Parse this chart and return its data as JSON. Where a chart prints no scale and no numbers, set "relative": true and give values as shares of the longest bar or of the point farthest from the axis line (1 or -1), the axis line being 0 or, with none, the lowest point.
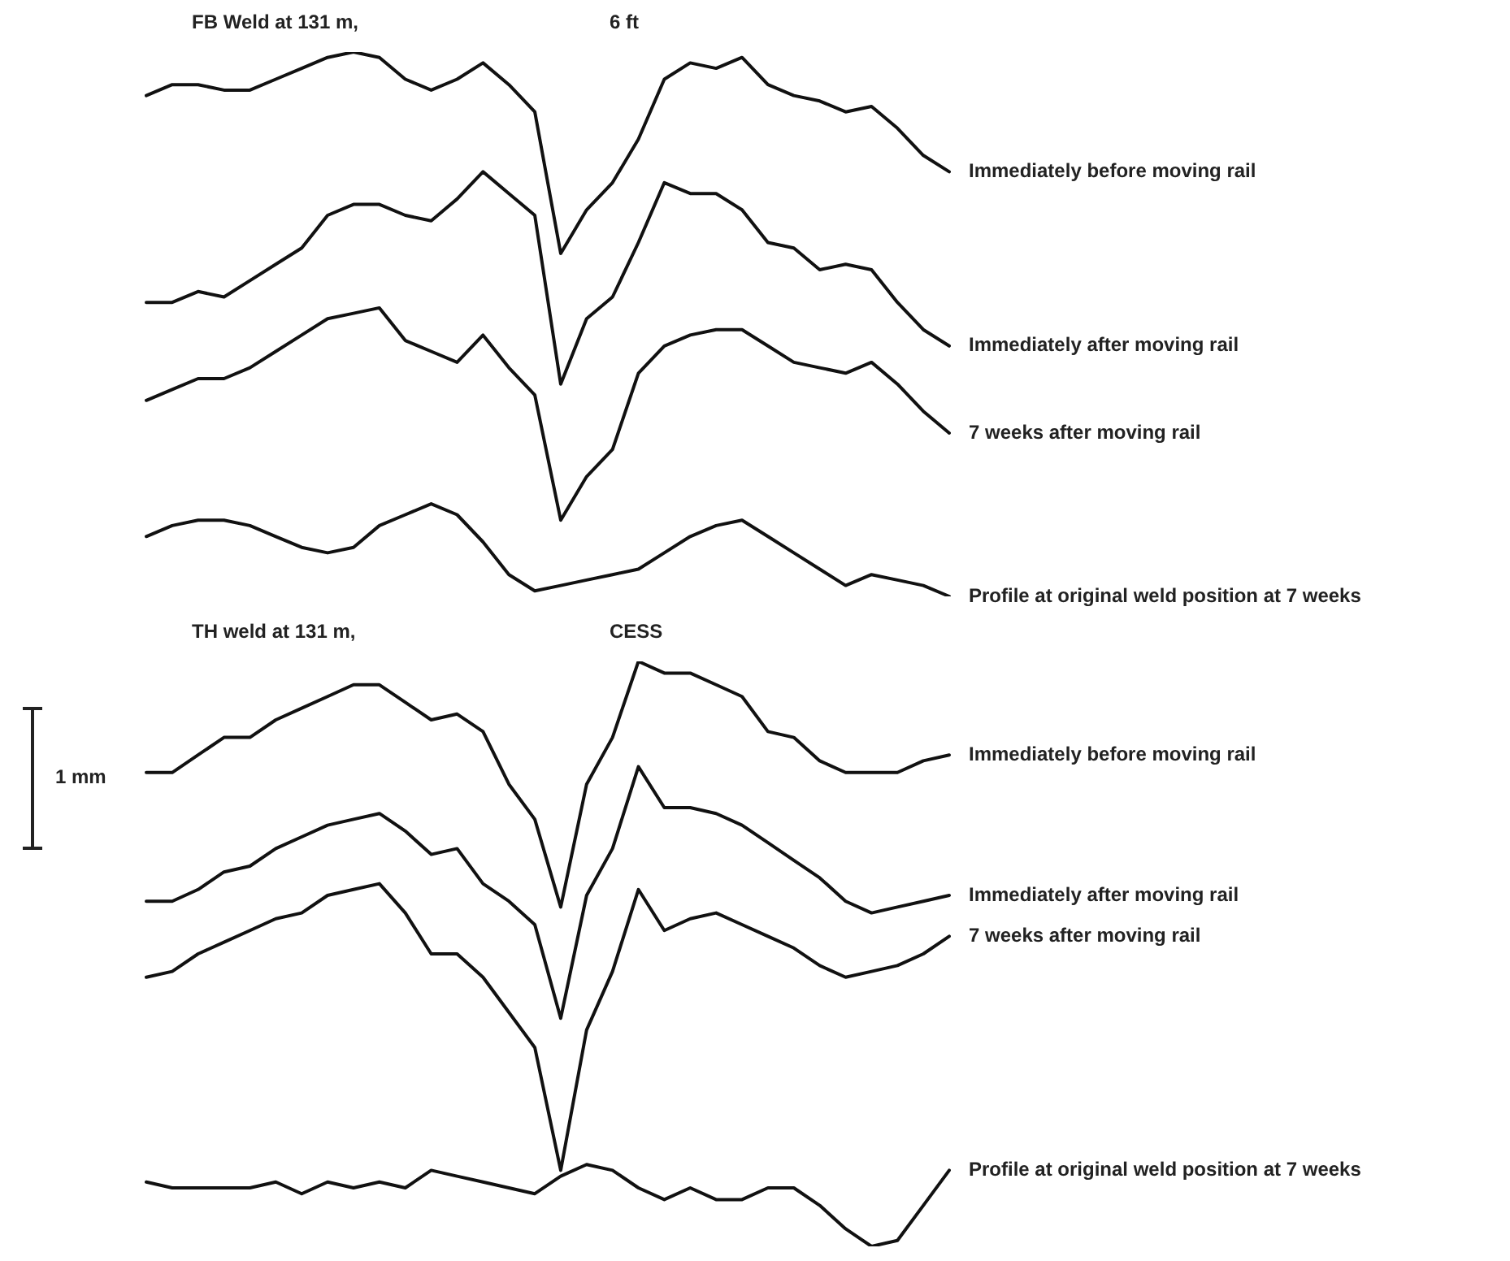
{
  "chart_data": [
    {
      "type": "line",
      "title": "FB Weld at 131 m,",
      "subtitle": "6 ft",
      "relative": true,
      "marker": "none",
      "line_style": "solid",
      "categories": [
        null,
        null,
        null,
        null,
        null,
        null,
        null,
        null,
        null,
        null,
        null,
        null,
        null,
        null,
        null,
        null,
        null,
        null,
        null,
        null,
        null,
        null,
        null,
        null,
        null,
        null,
        null,
        null,
        null,
        null,
        null,
        null
      ],
      "series": [
        {
          "name": "Immediately before moving rail",
          "color": "#111111",
          "values": [
            0.92,
            0.94,
            0.94,
            0.93,
            0.93,
            0.95,
            0.97,
            0.99,
            1,
            0.99,
            0.95,
            0.93,
            0.95,
            0.98,
            0.94,
            0.89,
            0.63,
            0.71,
            0.76,
            0.84,
            0.95,
            0.98,
            0.97,
            0.99,
            0.94,
            0.92,
            0.91,
            0.89,
            0.9,
            0.86,
            0.81,
            0.78
          ]
        },
        {
          "name": "Immediately after moving rail",
          "color": "#111111",
          "values": [
            0.54,
            0.54,
            0.56,
            0.55,
            0.58,
            0.61,
            0.64,
            0.7,
            0.72,
            0.72,
            0.7,
            0.69,
            0.73,
            0.78,
            0.74,
            0.7,
            0.39,
            0.51,
            0.55,
            0.65,
            0.76,
            0.74,
            0.74,
            0.71,
            0.65,
            0.64,
            0.6,
            0.61,
            0.6,
            0.54,
            0.49,
            0.46
          ]
        },
        {
          "name": "7 weeks after moving rail",
          "color": "#111111",
          "values": [
            0.36,
            0.38,
            0.4,
            0.4,
            0.42,
            0.45,
            0.48,
            0.51,
            0.52,
            0.53,
            0.47,
            0.45,
            0.43,
            0.48,
            0.42,
            0.37,
            0.14,
            0.22,
            0.27,
            0.41,
            0.46,
            0.48,
            0.49,
            0.49,
            0.46,
            0.43,
            0.42,
            0.41,
            0.43,
            0.39,
            0.34,
            0.3
          ]
        },
        {
          "name": "Profile at original weld position at 7 weeks",
          "color": "#111111",
          "values": [
            0.11,
            0.13,
            0.14,
            0.14,
            0.13,
            0.11,
            0.09,
            0.08,
            0.09,
            0.13,
            0.15,
            0.17,
            0.15,
            0.1,
            0.04,
            0.01,
            0.02,
            0.03,
            0.04,
            0.05,
            0.08,
            0.11,
            0.13,
            0.14,
            0.11,
            0.08,
            0.05,
            0.02,
            0.04,
            0.03,
            0.02,
            0
          ]
        }
      ]
    },
    {
      "type": "line",
      "title": "TH weld at 131 m,",
      "subtitle": "CESS",
      "relative": true,
      "marker": "none",
      "line_style": "solid",
      "annotations": [
        "1 mm"
      ],
      "categories": [
        null,
        null,
        null,
        null,
        null,
        null,
        null,
        null,
        null,
        null,
        null,
        null,
        null,
        null,
        null,
        null,
        null,
        null,
        null,
        null,
        null,
        null,
        null,
        null,
        null,
        null,
        null,
        null,
        null,
        null,
        null,
        null
      ],
      "series": [
        {
          "name": "Immediately before moving rail",
          "color": "#111111",
          "values": [
            0.81,
            0.81,
            0.84,
            0.87,
            0.87,
            0.9,
            0.92,
            0.94,
            0.96,
            0.96,
            0.93,
            0.9,
            0.91,
            0.88,
            0.79,
            0.73,
            0.58,
            0.79,
            0.87,
            1,
            0.98,
            0.98,
            0.96,
            0.94,
            0.88,
            0.87,
            0.83,
            0.81,
            0.81,
            0.81,
            0.83,
            0.84
          ]
        },
        {
          "name": "Immediately after moving rail",
          "color": "#111111",
          "values": [
            0.59,
            0.59,
            0.61,
            0.64,
            0.65,
            0.68,
            0.7,
            0.72,
            0.73,
            0.74,
            0.71,
            0.67,
            0.68,
            0.62,
            0.59,
            0.55,
            0.39,
            0.6,
            0.68,
            0.82,
            0.75,
            0.75,
            0.74,
            0.72,
            0.69,
            0.66,
            0.63,
            0.59,
            0.57,
            0.58,
            0.59,
            0.6
          ]
        },
        {
          "name": "7 weeks after moving rail",
          "color": "#111111",
          "values": [
            0.46,
            0.47,
            0.5,
            0.52,
            0.54,
            0.56,
            0.57,
            0.6,
            0.61,
            0.62,
            0.57,
            0.5,
            0.5,
            0.46,
            0.4,
            0.34,
            0.13,
            0.37,
            0.47,
            0.61,
            0.54,
            0.56,
            0.57,
            0.55,
            0.53,
            0.51,
            0.48,
            0.46,
            0.47,
            0.48,
            0.5,
            0.53
          ]
        },
        {
          "name": "Profile at original weld position at 7 weeks",
          "color": "#111111",
          "values": [
            0.11,
            0.1,
            0.1,
            0.1,
            0.1,
            0.11,
            0.09,
            0.11,
            0.1,
            0.11,
            0.1,
            0.13,
            0.12,
            0.11,
            0.1,
            0.09,
            0.12,
            0.14,
            0.13,
            0.1,
            0.08,
            0.1,
            0.08,
            0.08,
            0.1,
            0.1,
            0.07,
            0.03,
            0,
            0.01,
            0.07,
            0.13
          ]
        }
      ]
    }
  ]
}
